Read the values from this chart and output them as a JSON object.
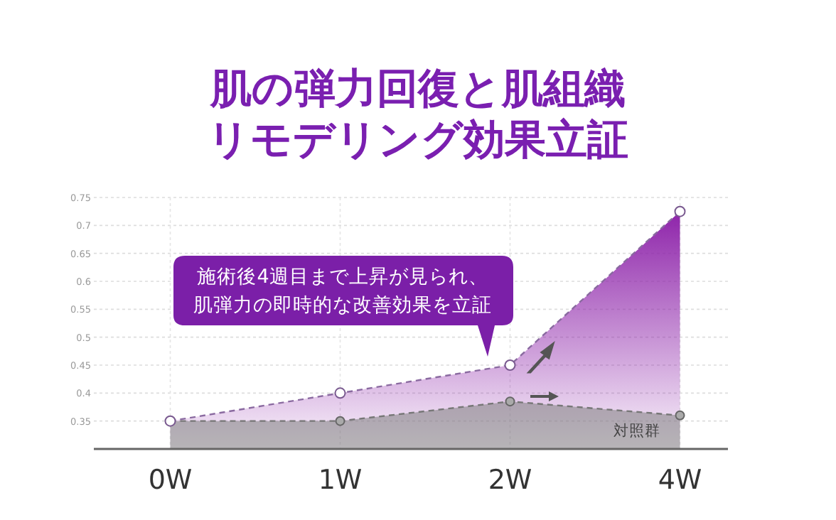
{
  "chart_data": {
    "type": "area",
    "title": "肌の弾力回復と肌組織",
    "subtitle": "リモデリング効果立証",
    "categories": [
      "0W",
      "1W",
      "2W",
      "4W"
    ],
    "series": [
      {
        "color": "#8e24aa",
        "values": [
          0.35,
          0.4,
          0.45,
          0.725
        ]
      },
      {
        "name": "対照群",
        "color": "#808080",
        "values": [
          0.35,
          0.35,
          0.385,
          0.36
        ]
      }
    ],
    "ylim": [
      0.3,
      0.75
    ],
    "yticks": [
      0.35,
      0.4,
      0.45,
      0.5,
      0.55,
      0.6,
      0.65,
      0.7,
      0.75
    ],
    "grid": true,
    "marker": "circle",
    "line_style": "dashed",
    "annotations": [
      "施術後4週目まで上昇が見られ、",
      "肌弾力の即時的な改善効果を立証"
    ]
  }
}
